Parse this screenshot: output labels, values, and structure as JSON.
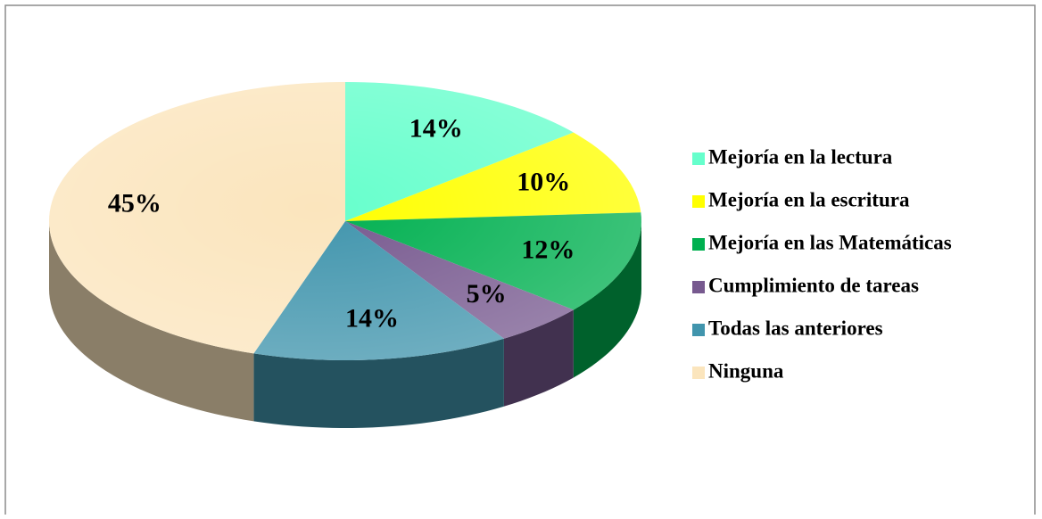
{
  "chart_data": {
    "type": "pie",
    "categories": [
      "Mejoría en la lectura",
      "Mejoría en la escritura",
      "Mejoría en las Matemáticas",
      "Cumplimiento de tareas",
      "Todas las anteriores",
      "Ninguna"
    ],
    "values": [
      14,
      10,
      12,
      5,
      14,
      45
    ],
    "value_labels": [
      "14%",
      "10%",
      "12%",
      "5%",
      "14%",
      "45%"
    ],
    "colors": [
      "#66ffcc",
      "#ffff00",
      "#00b050",
      "#77598f",
      "#4195ad",
      "#fbe5bd"
    ],
    "legend": "right"
  }
}
